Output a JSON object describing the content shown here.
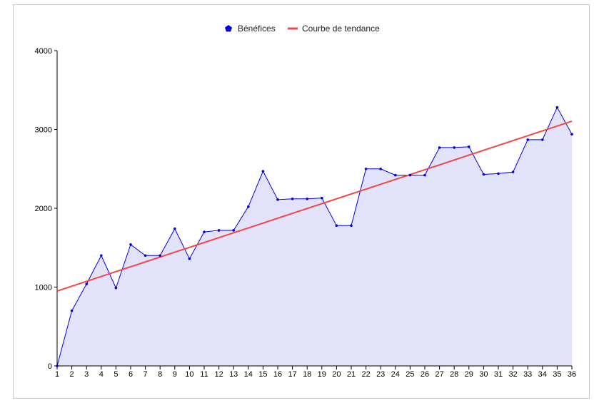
{
  "chart_data": {
    "type": "area",
    "title": "",
    "xlabel": "",
    "ylabel": "",
    "ylim": [
      0,
      4000
    ],
    "yticks": [
      0,
      1000,
      2000,
      3000,
      4000
    ],
    "x": [
      1,
      2,
      3,
      4,
      5,
      6,
      7,
      8,
      9,
      10,
      11,
      12,
      13,
      14,
      15,
      16,
      17,
      18,
      19,
      20,
      21,
      22,
      23,
      24,
      25,
      26,
      27,
      28,
      29,
      30,
      31,
      32,
      33,
      34,
      35,
      36
    ],
    "legend_position": "top-center",
    "grid": false,
    "series": [
      {
        "name": "Bénéfices",
        "kind": "area-line",
        "marker": "pentagon",
        "color": "#0000e0",
        "fill": "#e2e2fb",
        "values": [
          0,
          700,
          1040,
          1400,
          990,
          1540,
          1400,
          1400,
          1740,
          1360,
          1700,
          1720,
          1720,
          2020,
          2470,
          2110,
          2120,
          2120,
          2130,
          1780,
          1780,
          2500,
          2500,
          2420,
          2420,
          2420,
          2770,
          2770,
          2780,
          2430,
          2440,
          2460,
          2870,
          2870,
          3280,
          2940
        ]
      },
      {
        "name": "Courbe de tendance",
        "kind": "trendline",
        "color": "#f04848",
        "values_start_end": [
          950,
          3105
        ]
      }
    ]
  }
}
